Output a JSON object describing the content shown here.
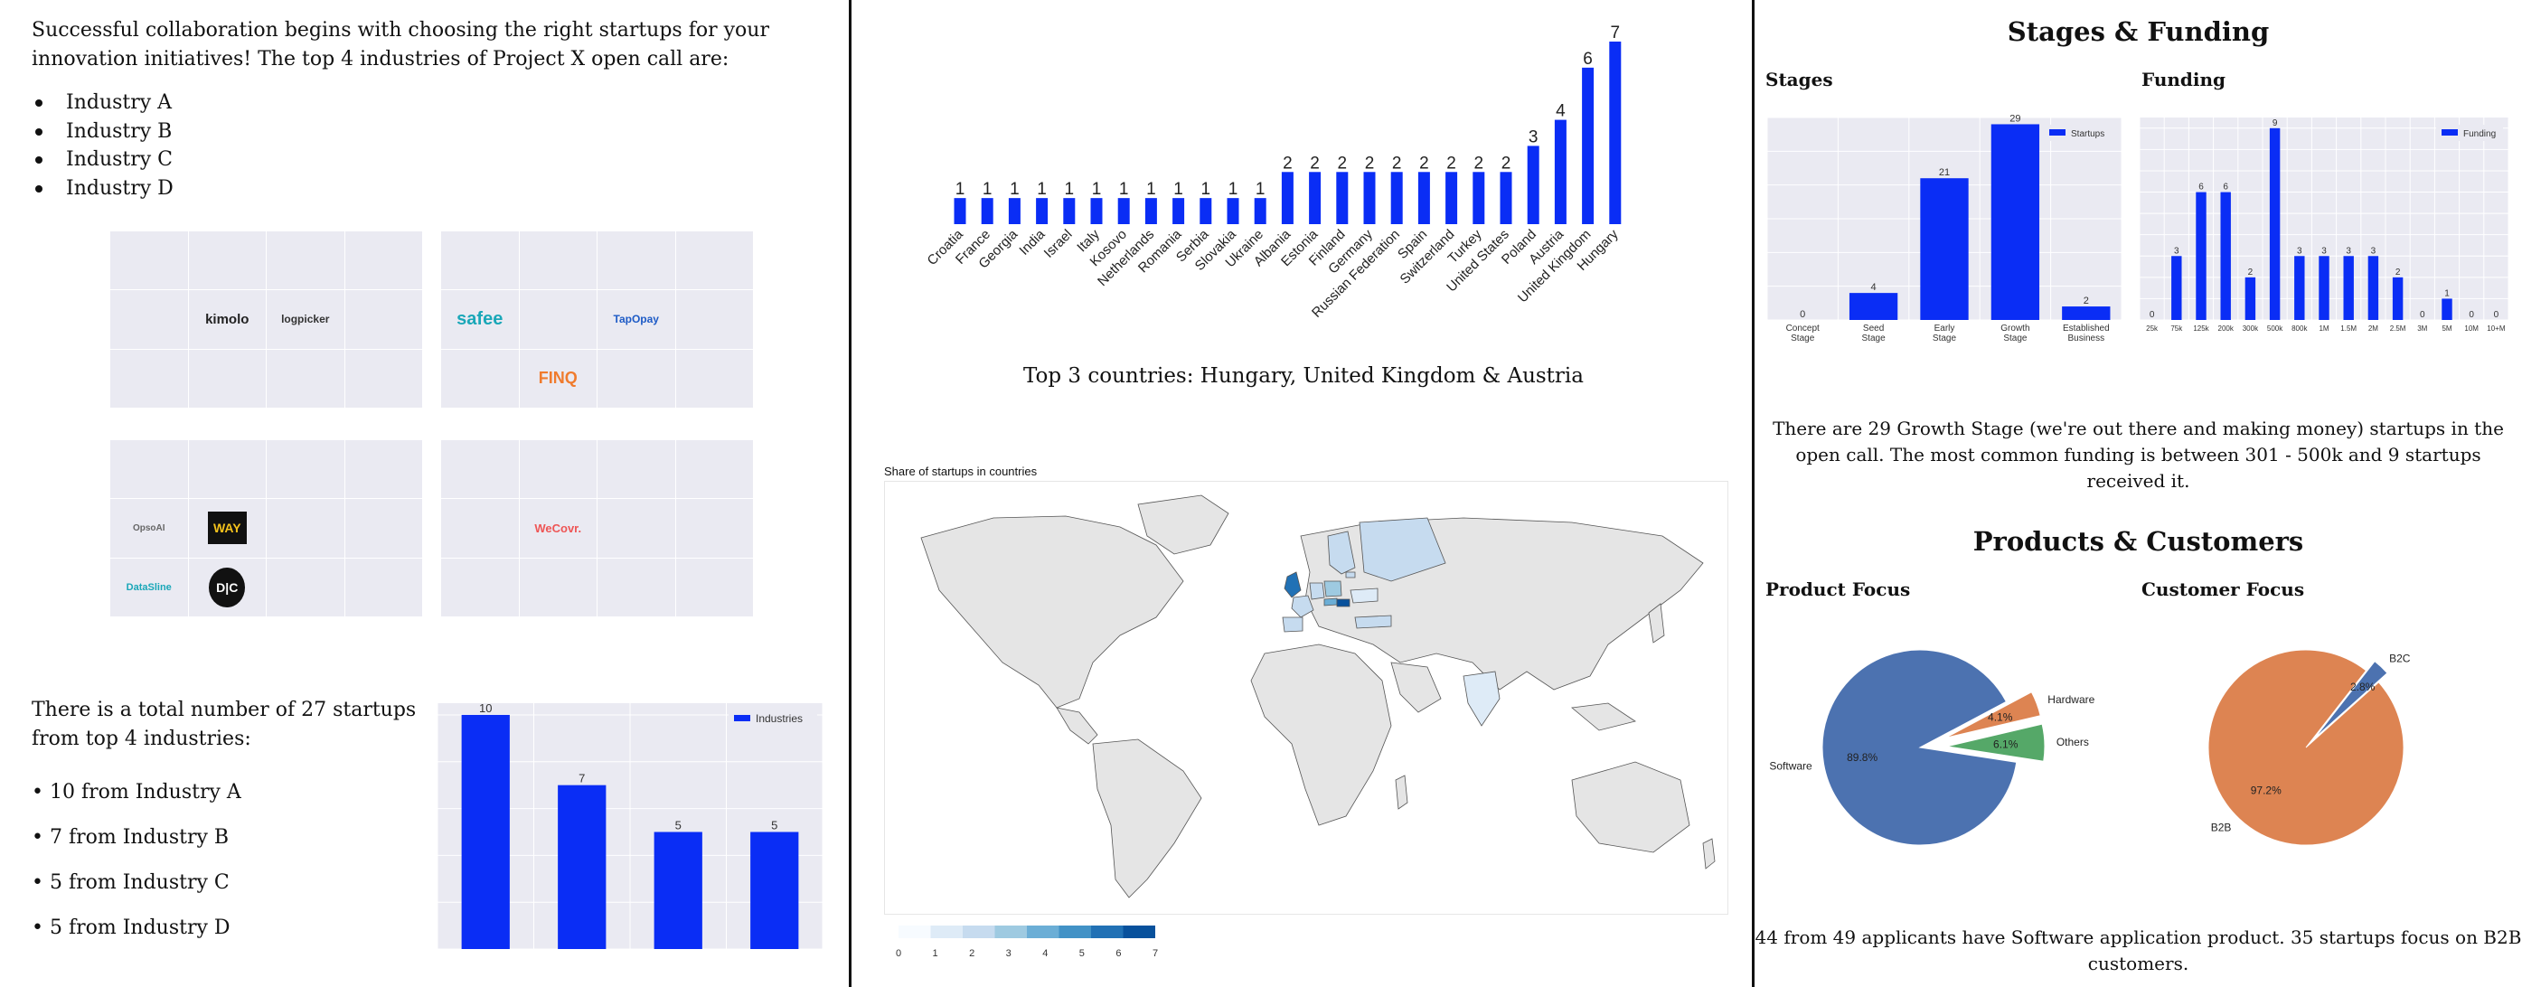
{
  "left": {
    "intro": "Successful collaboration begins with choosing the right startups for your innovation initiatives! The top 4 industries of Project X open call are:",
    "industries": [
      "Industry A",
      "Industry B",
      "Industry C",
      "Industry D"
    ],
    "logo_grids": [
      [
        "",
        "",
        "",
        "",
        "",
        "kimolo",
        "logpicker",
        "",
        "",
        "",
        "",
        ""
      ],
      [
        "",
        "",
        "",
        "",
        "safee",
        "",
        "TapOpay",
        "",
        "",
        "FINQ",
        "",
        ""
      ],
      [
        "",
        "",
        "",
        "",
        "OpsoAI",
        "WAY",
        "",
        "",
        "DataSline",
        "D|C",
        "",
        ""
      ],
      [
        "",
        "",
        "",
        "",
        "",
        "WeCovr.",
        "",
        "",
        "",
        "",
        "",
        ""
      ]
    ],
    "totals_intro": "There is a total number of 27 startups from top 4 industries:",
    "totals": [
      "• 10 from Industry A",
      "• 7 from Industry B",
      "• 5 from Industry C",
      "• 5 from Industry D"
    ]
  },
  "middle": {
    "top3": "Top 3 countries: Hungary, United Kingdom & Austria",
    "map_title": "Share of startups in countries",
    "map_scale": {
      "ticks": [
        "0",
        "1",
        "2",
        "3",
        "4",
        "5",
        "6",
        "7"
      ],
      "colors": [
        "#f7fbff",
        "#deebf7",
        "#c6dbef",
        "#9ecae1",
        "#6baed6",
        "#4292c6",
        "#2171b5",
        "#08519c"
      ]
    }
  },
  "right": {
    "h_stages_funding": "Stages & Funding",
    "h_stages": "Stages",
    "h_funding": "Funding",
    "stages_para": "There are 29 Growth Stage (we're out there and making money) startups in the open call. The most common funding is between 301 - 500k and 9 startups received it.",
    "h_products_customers": "Products & Customers",
    "h_product_focus": "Product Focus",
    "h_customer_focus": "Customer Focus",
    "products_para": "44 from 49 applicants have Software application product. 35 startups focus on B2B customers."
  },
  "chart_data": [
    {
      "id": "industries",
      "type": "bar",
      "categories": [
        "Industry A",
        "Industry B",
        "Industry C",
        "Industry D"
      ],
      "series": [
        {
          "name": "Industries",
          "values": [
            10,
            7,
            5,
            5
          ]
        }
      ],
      "ylim": [
        0,
        10.5
      ],
      "legend": "top-right",
      "grid": true,
      "color": "#0a2df5"
    },
    {
      "id": "countries",
      "type": "bar",
      "categories": [
        "Croatia",
        "France",
        "Georgia",
        "India",
        "Israel",
        "Italy",
        "Kosovo",
        "Netherlands",
        "Romania",
        "Serbia",
        "Slovakia",
        "Ukraine",
        "Albania",
        "Estonia",
        "Finland",
        "Germany",
        "Russian Federation",
        "Spain",
        "Switzerland",
        "Turkey",
        "United States",
        "Poland",
        "Austria",
        "United Kingdom",
        "Hungary"
      ],
      "values": [
        1,
        1,
        1,
        1,
        1,
        1,
        1,
        1,
        1,
        1,
        1,
        1,
        2,
        2,
        2,
        2,
        2,
        2,
        2,
        2,
        2,
        3,
        4,
        6,
        7
      ],
      "ylim": [
        0,
        7
      ],
      "grid": false,
      "color": "#0a2df5"
    },
    {
      "id": "stages",
      "type": "bar",
      "categories": [
        "Concept Stage",
        "Seed Stage",
        "Early Stage",
        "Growth Stage",
        "Established Business"
      ],
      "series": [
        {
          "name": "Startups",
          "values": [
            0,
            4,
            21,
            29,
            2
          ]
        }
      ],
      "ylim": [
        0,
        30
      ],
      "legend": "top-right",
      "grid": true,
      "color": "#0a2df5"
    },
    {
      "id": "funding",
      "type": "bar",
      "categories": [
        "25k",
        "75k",
        "125k",
        "200k",
        "300k",
        "500k",
        "800k",
        "1M",
        "1.5M",
        "2M",
        "2.5M",
        "3M",
        "5M",
        "10M",
        "10+M"
      ],
      "series": [
        {
          "name": "Funding",
          "values": [
            0,
            3,
            6,
            6,
            2,
            9,
            3,
            3,
            3,
            3,
            2,
            0,
            1,
            0,
            0
          ]
        }
      ],
      "ylim": [
        0,
        9.5
      ],
      "legend": "top-right",
      "grid": true,
      "color": "#0a2df5"
    },
    {
      "id": "product_focus",
      "type": "pie",
      "slices": [
        {
          "label": "Software",
          "pct": "89.8%",
          "value": 89.8,
          "color": "#4c72b0",
          "explode": false
        },
        {
          "label": "Others",
          "pct": "6.1%",
          "value": 6.1,
          "color": "#55a868",
          "explode": true
        },
        {
          "label": "Hardware",
          "pct": "4.1%",
          "value": 4.1,
          "color": "#dd8452",
          "explode": true
        }
      ]
    },
    {
      "id": "customer_focus",
      "type": "pie",
      "slices": [
        {
          "label": "B2B",
          "pct": "97.2%",
          "value": 97.2,
          "color": "#dd8452",
          "explode": false
        },
        {
          "label": "B2C",
          "pct": "2.8%",
          "value": 2.8,
          "color": "#4c72b0",
          "explode": true
        }
      ]
    }
  ]
}
